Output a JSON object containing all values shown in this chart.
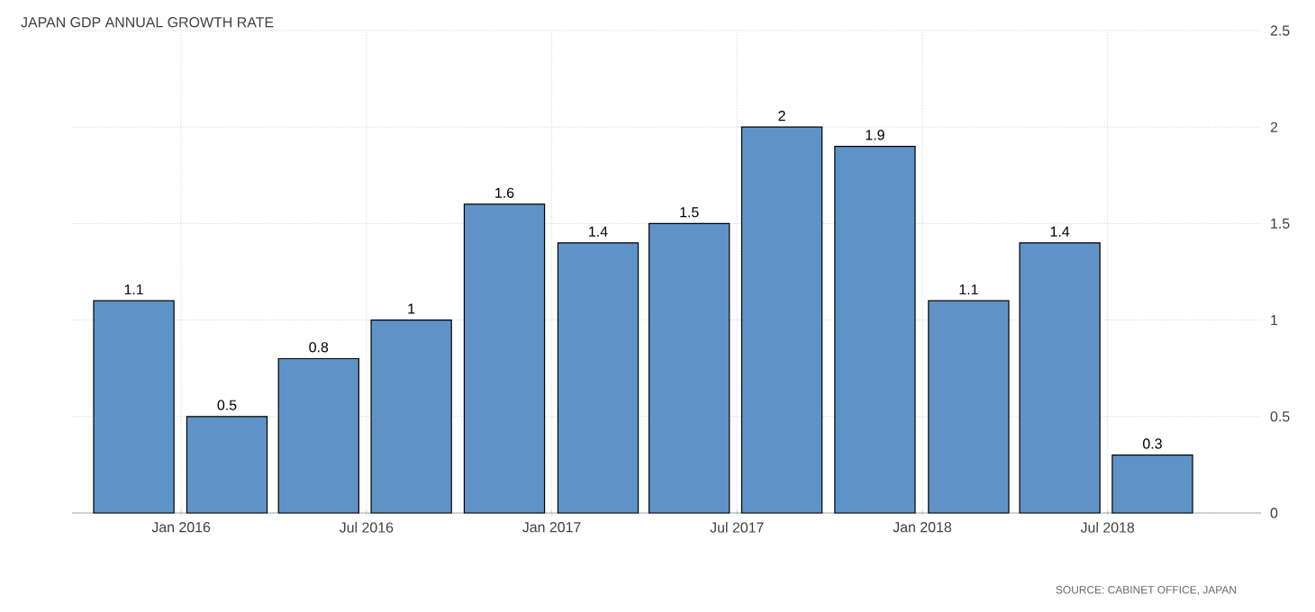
{
  "chart_data": {
    "type": "bar",
    "title": "JAPAN GDP ANNUAL GROWTH RATE",
    "x": [
      "2015-11-15",
      "2016-02-15",
      "2016-05-15",
      "2016-08-15",
      "2016-11-15",
      "2017-02-15",
      "2017-05-15",
      "2017-08-15",
      "2017-11-15",
      "2018-02-15",
      "2018-05-15",
      "2018-08-15"
    ],
    "values": [
      1.1,
      0.5,
      0.8,
      1,
      1.6,
      1.4,
      1.5,
      2,
      1.9,
      1.1,
      1.4,
      0.3
    ],
    "color": "#5f93c8",
    "xlim": [
      "2015-09-15",
      "2018-11-30"
    ],
    "xticks": [
      {
        "value": "2016-01-01",
        "label": "Jan 2016"
      },
      {
        "value": "2016-07-01",
        "label": "Jul 2016"
      },
      {
        "value": "2017-01-01",
        "label": "Jan 2017"
      },
      {
        "value": "2017-07-01",
        "label": "Jul 2017"
      },
      {
        "value": "2018-01-01",
        "label": "Jan 2018"
      },
      {
        "value": "2018-07-01",
        "label": "Jul 2018"
      }
    ],
    "ylim": [
      0,
      2.5
    ],
    "yticks": [
      0,
      0.5,
      1,
      1.5,
      2,
      2.5
    ],
    "grid": true,
    "data_labels": true,
    "annotations": [
      "SOURCE: CABINET OFFICE, JAPAN"
    ]
  }
}
